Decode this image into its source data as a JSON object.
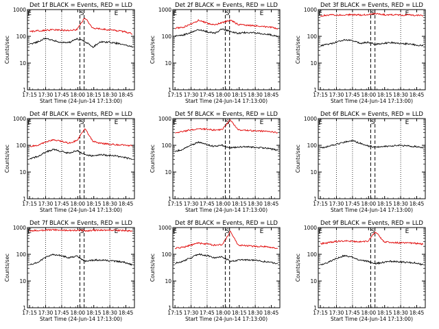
{
  "figure": {
    "x_tick_labels": [
      "17:15",
      "17:30",
      "17:45",
      "18:00",
      "18:15",
      "18:30",
      "18:45"
    ],
    "y_tick_labels": [
      "1",
      "10",
      "100",
      "1000"
    ],
    "ylabel": "Counts/sec",
    "xlabel": "Start Time (24-Jun-14 17:13:00)",
    "markers": [
      "E",
      "S",
      "E"
    ]
  },
  "chart_data": [
    {
      "type": "line",
      "title": "Det 1f BLACK = Events, RED = LLD",
      "xlabel": "Start Time (24-Jun-14 17:13:00)",
      "ylabel": "Counts/sec",
      "y_scale": "log",
      "ylim": [
        1,
        1000
      ],
      "xlim": [
        "17:13",
        "18:53"
      ],
      "series": [
        {
          "color": "#000000",
          "values": [
            50,
            62,
            85,
            70,
            60,
            58,
            80,
            65,
            40,
            62,
            60,
            55,
            48,
            40
          ]
        },
        {
          "color": "#e00000",
          "values": [
            150,
            160,
            170,
            175,
            170,
            165,
            180,
            500,
            200,
            190,
            175,
            165,
            150,
            125
          ]
        }
      ]
    },
    {
      "type": "line",
      "title": "Det 2f BLACK = Events, RED = LLD",
      "xlabel": "Start Time (24-Jun-14 17:13:00)",
      "ylabel": "Counts/sec",
      "y_scale": "log",
      "ylim": [
        1,
        1000
      ],
      "xlim": [
        "17:13",
        "18:53"
      ],
      "series": [
        {
          "color": "#000000",
          "values": [
            100,
            110,
            140,
            180,
            150,
            130,
            190,
            150,
            130,
            140,
            135,
            125,
            115,
            100
          ]
        },
        {
          "color": "#e00000",
          "values": [
            200,
            220,
            280,
            400,
            320,
            260,
            330,
            400,
            280,
            260,
            250,
            240,
            220,
            190
          ]
        }
      ]
    },
    {
      "type": "line",
      "title": "Det 3f BLACK = Events, RED = LLD",
      "xlabel": "Start Time (24-Jun-14 17:13:00)",
      "ylabel": "Counts/sec",
      "y_scale": "log",
      "ylim": [
        1,
        1000
      ],
      "xlim": [
        "17:13",
        "18:53"
      ],
      "series": [
        {
          "color": "#000000",
          "values": [
            45,
            50,
            60,
            75,
            70,
            55,
            60,
            50,
            55,
            58,
            55,
            52,
            48,
            45
          ]
        },
        {
          "color": "#e00000",
          "values": [
            600,
            620,
            630,
            650,
            640,
            630,
            640,
            720,
            650,
            640,
            630,
            630,
            620,
            600
          ]
        }
      ]
    },
    {
      "type": "line",
      "title": "Det 4f BLACK = Events, RED = LLD",
      "xlabel": "Start Time (24-Jun-14 17:13:00)",
      "ylabel": "Counts/sec",
      "y_scale": "log",
      "ylim": [
        1,
        1000
      ],
      "xlim": [
        "17:13",
        "18:53"
      ],
      "series": [
        {
          "color": "#000000",
          "values": [
            30,
            38,
            55,
            70,
            60,
            50,
            65,
            45,
            40,
            45,
            42,
            40,
            35,
            30
          ]
        },
        {
          "color": "#e00000",
          "values": [
            90,
            100,
            130,
            160,
            140,
            120,
            150,
            420,
            140,
            120,
            110,
            105,
            100,
            95
          ]
        }
      ]
    },
    {
      "type": "line",
      "title": "Det 5f BLACK = Events, RED = LLD",
      "xlabel": "Start Time (24-Jun-14 17:13:00)",
      "ylabel": "Counts/sec",
      "y_scale": "log",
      "ylim": [
        1,
        1000
      ],
      "xlim": [
        "17:13",
        "18:53"
      ],
      "series": [
        {
          "color": "#000000",
          "values": [
            60,
            70,
            100,
            130,
            110,
            90,
            100,
            80,
            85,
            90,
            85,
            80,
            75,
            65
          ]
        },
        {
          "color": "#e00000",
          "values": [
            300,
            330,
            380,
            420,
            400,
            370,
            400,
            900,
            380,
            360,
            350,
            340,
            330,
            300
          ]
        }
      ]
    },
    {
      "type": "line",
      "title": "Det 6f BLACK = Events, RED = LLD",
      "xlabel": "Start Time (24-Jun-14 17:13:00)",
      "ylabel": "Counts/sec",
      "y_scale": "log",
      "ylim": [
        1,
        1000
      ],
      "xlim": [
        "17:13",
        "18:53"
      ],
      "series": [
        {
          "color": "#000000",
          "values": [
            80,
            90,
            110,
            130,
            150,
            120,
            95,
            85,
            90,
            95,
            100,
            95,
            90,
            80
          ]
        }
      ]
    },
    {
      "type": "line",
      "title": "Det 7f BLACK = Events, RED = LLD",
      "xlabel": "Start Time (24-Jun-14 17:13:00)",
      "ylabel": "Counts/sec",
      "y_scale": "log",
      "ylim": [
        1,
        1000
      ],
      "xlim": [
        "17:13",
        "18:53"
      ],
      "series": [
        {
          "color": "#000000",
          "values": [
            40,
            50,
            75,
            100,
            90,
            75,
            85,
            55,
            60,
            62,
            58,
            55,
            50,
            40
          ]
        },
        {
          "color": "#e00000",
          "values": [
            750,
            780,
            800,
            820,
            800,
            780,
            790,
            760,
            780,
            800,
            790,
            780,
            770,
            750
          ]
        }
      ]
    },
    {
      "type": "line",
      "title": "Det 8f BLACK = Events, RED = LLD",
      "xlabel": "Start Time (24-Jun-14 17:13:00)",
      "ylabel": "Counts/sec",
      "y_scale": "log",
      "ylim": [
        1,
        1000
      ],
      "xlim": [
        "17:13",
        "18:53"
      ],
      "series": [
        {
          "color": "#000000",
          "values": [
            45,
            55,
            75,
            100,
            90,
            75,
            80,
            55,
            60,
            62,
            60,
            55,
            50,
            45
          ]
        },
        {
          "color": "#e00000",
          "values": [
            170,
            180,
            220,
            260,
            240,
            220,
            230,
            700,
            220,
            210,
            200,
            195,
            185,
            160
          ]
        }
      ]
    },
    {
      "type": "line",
      "title": "Det 9f BLACK = Events, RED = LLD",
      "xlabel": "Start Time (24-Jun-14 17:13:00)",
      "ylabel": "Counts/sec",
      "y_scale": "log",
      "ylim": [
        1,
        1000
      ],
      "xlim": [
        "17:13",
        "18:53"
      ],
      "series": [
        {
          "color": "#000000",
          "values": [
            40,
            50,
            70,
            90,
            80,
            60,
            55,
            45,
            50,
            55,
            52,
            50,
            48,
            40
          ]
        },
        {
          "color": "#e00000",
          "values": [
            250,
            270,
            300,
            320,
            310,
            290,
            310,
            700,
            300,
            280,
            270,
            265,
            260,
            240
          ]
        }
      ]
    }
  ]
}
